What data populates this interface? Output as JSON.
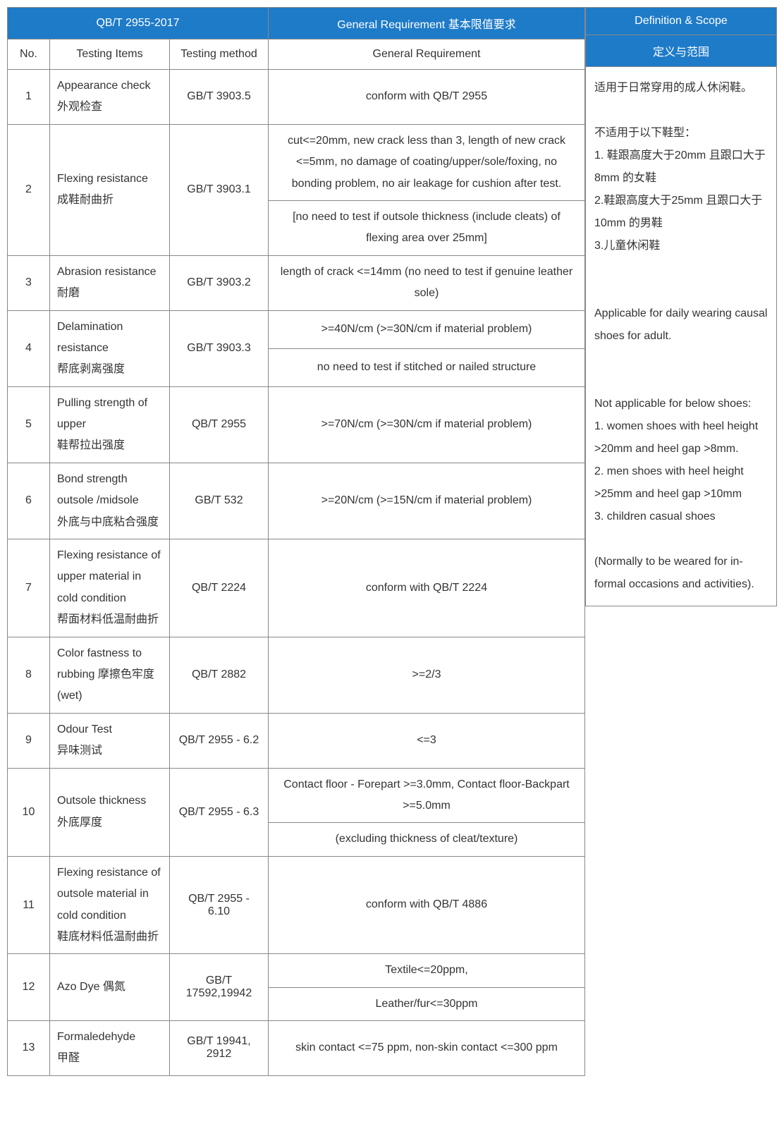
{
  "headers": {
    "standard": "QB/T 2955-2017",
    "general_req": "General Requirement  基本限值要求",
    "definition": "Definition & Scope",
    "definition_cn": "定义与范围"
  },
  "subheaders": {
    "no": "No.",
    "items": "Testing Items",
    "method": "Testing method",
    "req": "General Requirement"
  },
  "rows": [
    {
      "no": "1",
      "items": "Appearance check 外观检查",
      "method": "GB/T 3903.5",
      "req": [
        "conform with QB/T 2955"
      ]
    },
    {
      "no": "2",
      "items": "Flexing resistance\n成鞋耐曲折",
      "method": "GB/T 3903.1",
      "req": [
        "cut<=20mm, new crack less than 3, length of new crack <=5mm, no damage of coating/upper/sole/foxing, no bonding problem, no air leakage for cushion after test.",
        "[no need to test if outsole thickness (include cleats) of flexing area over 25mm]"
      ]
    },
    {
      "no": "3",
      "items": "Abrasion resistance  耐磨",
      "method": "GB/T 3903.2",
      "req": [
        "length of crack <=14mm (no need to test if genuine leather sole)"
      ]
    },
    {
      "no": "4",
      "items": "Delamination resistance\n帮底剥离强度",
      "method": "GB/T 3903.3",
      "req": [
        ">=40N/cm (>=30N/cm if material problem)",
        "no need to test if stitched or nailed structure"
      ]
    },
    {
      "no": "5",
      "items": "Pulling strength of upper\n鞋帮拉出强度",
      "method": "QB/T 2955",
      "req": [
        ">=70N/cm (>=30N/cm if material problem)"
      ]
    },
    {
      "no": "6",
      "items": "Bond strength outsole /midsole\n外底与中底粘合强度",
      "method": "GB/T 532",
      "req": [
        ">=20N/cm (>=15N/cm if material problem)"
      ]
    },
    {
      "no": "7",
      "items": "Flexing resistance of upper material in cold condition\n帮面材料低温耐曲折",
      "method": "QB/T 2224",
      "req": [
        "conform with QB/T 2224"
      ]
    },
    {
      "no": "8",
      "items": "Color fastness to rubbing 摩擦色牢度 (wet)",
      "method": "QB/T 2882",
      "req": [
        ">=2/3"
      ]
    },
    {
      "no": "9",
      "items": "Odour Test\n异味测试",
      "method": "QB/T 2955 - 6.2",
      "req": [
        "<=3"
      ]
    },
    {
      "no": "10",
      "items": "Outsole thickness\n外底厚度",
      "method": "QB/T 2955 - 6.3",
      "req": [
        "Contact floor - Forepart >=3.0mm, Contact floor-Backpart >=5.0mm",
        "(excluding thickness of cleat/texture)"
      ]
    },
    {
      "no": "11",
      "items": "Flexing resistance of outsole material in cold condition\n鞋底材料低温耐曲折",
      "method": "QB/T 2955 - 6.10",
      "req": [
        "conform with QB/T 4886"
      ]
    },
    {
      "no": "12",
      "items": "Azo Dye 偶氮",
      "method": "GB/T 17592,19942",
      "req": [
        "Textile<=20ppm,",
        "Leather/fur<=30ppm"
      ]
    },
    {
      "no": "13",
      "items": "Formaledehyde\n甲醛",
      "method": "GB/T 19941, 2912",
      "req": [
        "skin contact <=75 ppm, non-skin contact <=300 ppm"
      ]
    }
  ],
  "side": {
    "cn": "适用于日常穿用的成人休闲鞋。\n\n不适用于以下鞋型：\n1.  鞋跟高度大于20mm 且跟口大于8mm 的女鞋\n2.鞋跟高度大于25mm 且跟口大于10mm 的男鞋\n3.儿童休闲鞋",
    "en": "Applicable for daily wearing causal shoes for adult.\n\n\nNot applicable for below shoes:\n1. women shoes with heel height >20mm and heel gap >8mm.\n2. men shoes with heel height >25mm and heel gap >10mm\n3. children casual shoes\n\n(Normally to be weared for in-formal occasions and activities)."
  },
  "styles": {
    "header_bg": "#1e7bc8",
    "header_color": "#ffffff",
    "border_color": "#888888",
    "text_color": "#333333",
    "font_size": 16
  }
}
